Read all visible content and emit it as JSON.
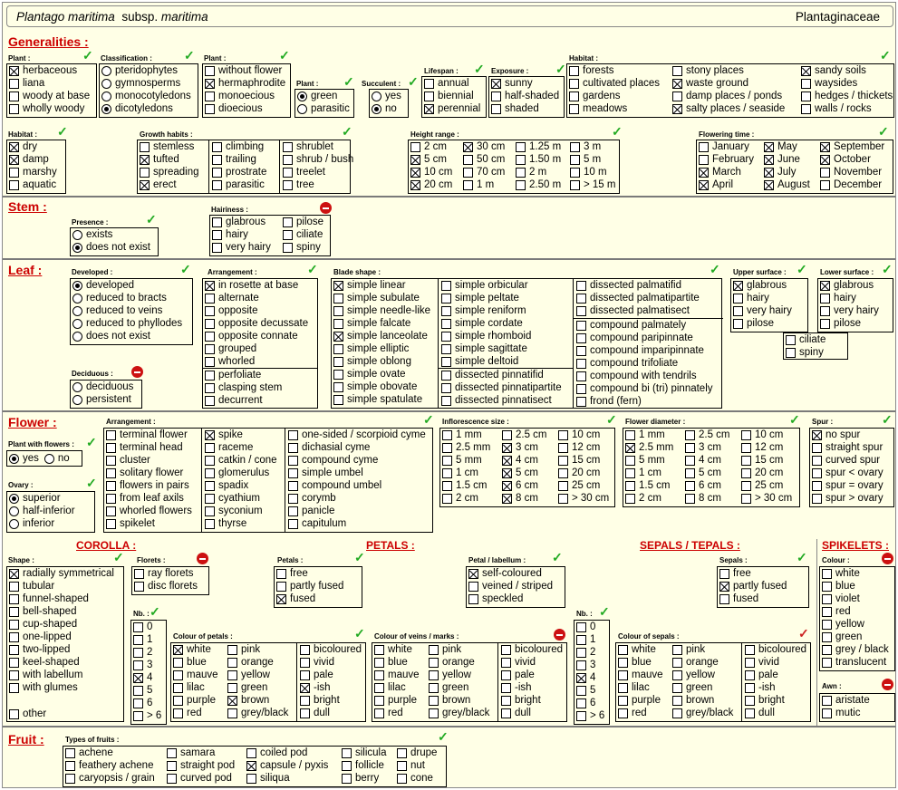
{
  "header": {
    "genus": "Plantago maritima",
    "subsp_label": "subsp.",
    "subsp": "maritima",
    "family": "Plantaginaceae"
  },
  "sections": {
    "generalities": "Generalities :",
    "stem": "Stem :",
    "leaf": "Leaf :",
    "flower": "Flower :",
    "fruit": "Fruit :"
  },
  "subsections": {
    "corolla": "COROLLA :",
    "petals": "PETALS :",
    "sepals": "SEPALS / TEPALS :",
    "spikelets": "SPIKELETS :"
  },
  "labels": {
    "plant1": "Plant :",
    "classification": "Classification :",
    "plant2": "Plant :",
    "plant3": "Plant :",
    "succulent": "Succulent :",
    "lifespan": "Lifespan :",
    "exposure": "Exposure :",
    "habitat1": "Habitat :",
    "habitat2": "Habitat :",
    "growth": "Growth habits :",
    "height": "Height range :",
    "flowering": "Flowering time :",
    "presence": "Presence :",
    "hairiness": "Hairiness :",
    "developed": "Developed :",
    "arrangement_leaf": "Arrangement :",
    "blade": "Blade shape :",
    "upper": "Upper surface :",
    "lower": "Lower surface :",
    "deciduous": "Deciduous :",
    "plant_flowers": "Plant with flowers :",
    "ovary": "Ovary :",
    "arrangement_fl": "Arrangement :",
    "infl_size": "Inflorescence size :",
    "fl_diam": "Flower diameter :",
    "spur": "Spur :",
    "shape": "Shape :",
    "florets": "Florets :",
    "petals": "Petals :",
    "petal_labellum": "Petal / labellum :",
    "sepals": "Sepals :",
    "colour": "Colour :",
    "nb1": "Nb. :",
    "nb2": "Nb. :",
    "colour_petals": "Colour of petals :",
    "colour_veins": "Colour of veins / marks :",
    "colour_sepals": "Colour of sepals :",
    "awn": "Awn :",
    "fruit_types": "Types of fruits :"
  },
  "check_glyph": "✓",
  "colors": {
    "section": "#cc0000",
    "check": "#22aa22",
    "prohibit": "#cc1111",
    "background": "#ffffe6"
  },
  "g_plant1": [
    {
      "t": "herbaceous",
      "c": 1
    },
    {
      "t": "liana",
      "c": 0
    },
    {
      "t": "woody at base",
      "c": 0
    },
    {
      "t": "wholly woody",
      "c": 0
    }
  ],
  "g_class": [
    {
      "t": "pteridophytes",
      "c": 0
    },
    {
      "t": "gymnosperms",
      "c": 0
    },
    {
      "t": "monocotyledons",
      "c": 0
    },
    {
      "t": "dicotyledons",
      "c": 1
    }
  ],
  "g_plant2": [
    {
      "t": "without flower",
      "c": 0
    },
    {
      "t": "hermaphrodite",
      "c": 1
    },
    {
      "t": "monoecious",
      "c": 0
    },
    {
      "t": "dioecious",
      "c": 0
    }
  ],
  "g_plant3": [
    {
      "t": "green",
      "c": 1
    },
    {
      "t": "parasitic",
      "c": 0
    }
  ],
  "g_succ": [
    {
      "t": "yes",
      "c": 0
    },
    {
      "t": "no",
      "c": 1
    }
  ],
  "g_life": [
    {
      "t": "annual",
      "c": 0
    },
    {
      "t": "biennial",
      "c": 0
    },
    {
      "t": "perennial",
      "c": 1
    }
  ],
  "g_expo": [
    {
      "t": "sunny",
      "c": 1
    },
    {
      "t": "half-shaded",
      "c": 0
    },
    {
      "t": "shaded",
      "c": 0
    }
  ],
  "g_hab1a": [
    {
      "t": "forests",
      "c": 0
    },
    {
      "t": "cultivated places",
      "c": 0
    },
    {
      "t": "gardens",
      "c": 0
    },
    {
      "t": "meadows",
      "c": 0
    }
  ],
  "g_hab1b": [
    {
      "t": "stony places",
      "c": 0
    },
    {
      "t": "waste ground",
      "c": 1
    },
    {
      "t": "damp places / ponds",
      "c": 0
    },
    {
      "t": "salty places / seaside",
      "c": 1
    }
  ],
  "g_hab1c": [
    {
      "t": "sandy soils",
      "c": 1
    },
    {
      "t": "waysides",
      "c": 0
    },
    {
      "t": "hedges / thickets",
      "c": 0
    },
    {
      "t": "walls / rocks",
      "c": 0
    }
  ],
  "g_hab2": [
    {
      "t": "dry",
      "c": 1
    },
    {
      "t": "damp",
      "c": 1
    },
    {
      "t": "marshy",
      "c": 0
    },
    {
      "t": "aquatic",
      "c": 0
    }
  ],
  "g_gr1": [
    {
      "t": "stemless",
      "c": 0
    },
    {
      "t": "tufted",
      "c": 1
    },
    {
      "t": "spreading",
      "c": 0
    },
    {
      "t": "erect",
      "c": 1
    }
  ],
  "g_gr2": [
    {
      "t": "climbing",
      "c": 0
    },
    {
      "t": "trailing",
      "c": 0
    },
    {
      "t": "prostrate",
      "c": 0
    },
    {
      "t": "parasitic",
      "c": 0
    }
  ],
  "g_gr3": [
    {
      "t": "shrublet",
      "c": 0
    },
    {
      "t": "shrub / bush",
      "c": 0
    },
    {
      "t": "treelet",
      "c": 0
    },
    {
      "t": "tree",
      "c": 0
    }
  ],
  "g_h1": [
    {
      "t": "2 cm",
      "c": 0
    },
    {
      "t": "5 cm",
      "c": 1
    },
    {
      "t": "10 cm",
      "c": 1
    },
    {
      "t": "20 cm",
      "c": 1
    }
  ],
  "g_h2": [
    {
      "t": "30 cm",
      "c": 1
    },
    {
      "t": "50 cm",
      "c": 0
    },
    {
      "t": "70 cm",
      "c": 0
    },
    {
      "t": "1 m",
      "c": 0
    }
  ],
  "g_h3": [
    {
      "t": "1.25 m",
      "c": 0
    },
    {
      "t": "1.50 m",
      "c": 0
    },
    {
      "t": "2 m",
      "c": 0
    },
    {
      "t": "2.50 m",
      "c": 0
    }
  ],
  "g_h4": [
    {
      "t": "3 m",
      "c": 0
    },
    {
      "t": "5 m",
      "c": 0
    },
    {
      "t": "10 m",
      "c": 0
    },
    {
      "t": "> 15 m",
      "c": 0
    }
  ],
  "g_f1": [
    {
      "t": "January",
      "c": 0
    },
    {
      "t": "February",
      "c": 0
    },
    {
      "t": "March",
      "c": 1
    },
    {
      "t": "April",
      "c": 1
    }
  ],
  "g_f2": [
    {
      "t": "May",
      "c": 1
    },
    {
      "t": "June",
      "c": 1
    },
    {
      "t": "July",
      "c": 1
    },
    {
      "t": "August",
      "c": 1
    }
  ],
  "g_f3": [
    {
      "t": "September",
      "c": 1
    },
    {
      "t": "October",
      "c": 1
    },
    {
      "t": "November",
      "c": 0
    },
    {
      "t": "December",
      "c": 0
    }
  ],
  "s_pres": [
    {
      "t": "exists",
      "c": 0
    },
    {
      "t": "does not exist",
      "c": 1
    }
  ],
  "s_hair1": [
    {
      "t": "glabrous",
      "c": 0
    },
    {
      "t": "hairy",
      "c": 0
    },
    {
      "t": "very hairy",
      "c": 0
    }
  ],
  "s_hair2": [
    {
      "t": "pilose",
      "c": 0
    },
    {
      "t": "ciliate",
      "c": 0
    },
    {
      "t": "spiny",
      "c": 0
    }
  ],
  "l_dev": [
    {
      "t": "developed",
      "c": 1
    },
    {
      "t": "reduced to bracts",
      "c": 0
    },
    {
      "t": "reduced to veins",
      "c": 0
    },
    {
      "t": "reduced to phyllodes",
      "c": 0
    },
    {
      "t": "does not exist",
      "c": 0
    }
  ],
  "l_dec": [
    {
      "t": "deciduous",
      "c": 0
    },
    {
      "t": "persistent",
      "c": 0
    }
  ],
  "l_arr1": [
    {
      "t": "in rosette at base",
      "c": 1
    },
    {
      "t": "alternate",
      "c": 0
    },
    {
      "t": "opposite",
      "c": 0
    },
    {
      "t": "opposite decussate",
      "c": 0
    },
    {
      "t": "opposite connate",
      "c": 0
    },
    {
      "t": "grouped",
      "c": 0
    },
    {
      "t": "whorled",
      "c": 0
    }
  ],
  "l_arr2": [
    {
      "t": "perfoliate",
      "c": 0
    },
    {
      "t": "clasping stem",
      "c": 0
    },
    {
      "t": "decurrent",
      "c": 0
    }
  ],
  "l_b1": [
    {
      "t": "simple linear",
      "c": 1
    },
    {
      "t": "simple subulate",
      "c": 0
    },
    {
      "t": "simple needle-like",
      "c": 0
    },
    {
      "t": "simple falcate",
      "c": 0
    },
    {
      "t": "simple lanceolate",
      "c": 1
    },
    {
      "t": "simple elliptic",
      "c": 0
    },
    {
      "t": "simple oblong",
      "c": 0
    },
    {
      "t": "simple ovate",
      "c": 0
    },
    {
      "t": "simple obovate",
      "c": 0
    },
    {
      "t": "simple spatulate",
      "c": 0
    }
  ],
  "l_b2a": [
    {
      "t": "simple orbicular",
      "c": 0
    },
    {
      "t": "simple peltate",
      "c": 0
    },
    {
      "t": "simple reniform",
      "c": 0
    },
    {
      "t": "simple cordate",
      "c": 0
    },
    {
      "t": "simple rhomboid",
      "c": 0
    },
    {
      "t": "simple sagittate",
      "c": 0
    },
    {
      "t": "simple deltoid",
      "c": 0
    }
  ],
  "l_b2b": [
    {
      "t": "dissected pinnatifid",
      "c": 0
    },
    {
      "t": "dissected pinnatipartite",
      "c": 0
    },
    {
      "t": "dissected pinnatisect",
      "c": 0
    }
  ],
  "l_b3a": [
    {
      "t": "dissected palmatifid",
      "c": 0
    },
    {
      "t": "dissected palmatipartite",
      "c": 0
    },
    {
      "t": "dissected palmatisect",
      "c": 0
    }
  ],
  "l_b3b": [
    {
      "t": "compound palmately",
      "c": 0
    },
    {
      "t": "compound paripinnate",
      "c": 0
    },
    {
      "t": "compound imparipinnate",
      "c": 0
    },
    {
      "t": "compound trifoliate",
      "c": 0
    },
    {
      "t": "compound with tendrils",
      "c": 0
    },
    {
      "t": "compound bi (tri) pinnately",
      "c": 0
    },
    {
      "t": "frond  (fern)",
      "c": 0
    }
  ],
  "l_up": [
    {
      "t": "glabrous",
      "c": 1
    },
    {
      "t": "hairy",
      "c": 0
    },
    {
      "t": "very hairy",
      "c": 0
    },
    {
      "t": "pilose",
      "c": 0
    }
  ],
  "l_low": [
    {
      "t": "glabrous",
      "c": 1
    },
    {
      "t": "hairy",
      "c": 0
    },
    {
      "t": "very hairy",
      "c": 0
    },
    {
      "t": "pilose",
      "c": 0
    }
  ],
  "l_cs": [
    {
      "t": "ciliate",
      "c": 0
    },
    {
      "t": "spiny",
      "c": 0
    }
  ],
  "f_pwf": [
    {
      "t": "yes",
      "c": 1
    },
    {
      "t": "no",
      "c": 0
    }
  ],
  "f_ov": [
    {
      "t": "superior",
      "c": 1
    },
    {
      "t": "half-inferior",
      "c": 0
    },
    {
      "t": "inferior",
      "c": 0
    }
  ],
  "f_a1": [
    {
      "t": "terminal flower",
      "c": 0
    },
    {
      "t": "terminal head",
      "c": 0
    },
    {
      "t": "cluster",
      "c": 0
    },
    {
      "t": "solitary flower",
      "c": 0
    },
    {
      "t": "flowers in pairs",
      "c": 0
    },
    {
      "t": "from leaf axils",
      "c": 0
    },
    {
      "t": "whorled flowers",
      "c": 0
    },
    {
      "t": "spikelet",
      "c": 0
    }
  ],
  "f_a2": [
    {
      "t": "spike",
      "c": 1
    },
    {
      "t": "raceme",
      "c": 0
    },
    {
      "t": "catkin / cone",
      "c": 0
    },
    {
      "t": "glomerulus",
      "c": 0
    },
    {
      "t": "spadix",
      "c": 0
    },
    {
      "t": "cyathium",
      "c": 0
    },
    {
      "t": "syconium",
      "c": 0
    },
    {
      "t": "thyrse",
      "c": 0
    }
  ],
  "f_a3": [
    {
      "t": "one-sided / scorpioid cyme",
      "c": 0
    },
    {
      "t": "dichasial cyme",
      "c": 0
    },
    {
      "t": "compound cyme",
      "c": 0
    },
    {
      "t": "simple umbel",
      "c": 0
    },
    {
      "t": "compound umbel",
      "c": 0
    },
    {
      "t": "corymb",
      "c": 0
    },
    {
      "t": "panicle",
      "c": 0
    },
    {
      "t": "capitulum",
      "c": 0
    }
  ],
  "f_i1": [
    {
      "t": "1 mm",
      "c": 0
    },
    {
      "t": "2.5 mm",
      "c": 0
    },
    {
      "t": "5 mm",
      "c": 0
    },
    {
      "t": "1 cm",
      "c": 0
    },
    {
      "t": "1.5 cm",
      "c": 0
    },
    {
      "t": "2 cm",
      "c": 0
    }
  ],
  "f_i2": [
    {
      "t": "2.5 cm",
      "c": 0
    },
    {
      "t": "3 cm",
      "c": 1
    },
    {
      "t": "4 cm",
      "c": 1
    },
    {
      "t": "5 cm",
      "c": 1
    },
    {
      "t": "6 cm",
      "c": 1
    },
    {
      "t": "8 cm",
      "c": 1
    }
  ],
  "f_i3": [
    {
      "t": "10 cm",
      "c": 0
    },
    {
      "t": "12 cm",
      "c": 0
    },
    {
      "t": "15 cm",
      "c": 0
    },
    {
      "t": "20 cm",
      "c": 0
    },
    {
      "t": "25 cm",
      "c": 0
    },
    {
      "t": "> 30 cm",
      "c": 0
    }
  ],
  "f_d1": [
    {
      "t": "1 mm",
      "c": 0
    },
    {
      "t": "2.5 mm",
      "c": 1
    },
    {
      "t": "5 mm",
      "c": 0
    },
    {
      "t": "1 cm",
      "c": 0
    },
    {
      "t": "1.5 cm",
      "c": 0
    },
    {
      "t": "2 cm",
      "c": 0
    }
  ],
  "f_d2": [
    {
      "t": "2.5 cm",
      "c": 0
    },
    {
      "t": "3 cm",
      "c": 0
    },
    {
      "t": "4 cm",
      "c": 0
    },
    {
      "t": "5 cm",
      "c": 0
    },
    {
      "t": "6 cm",
      "c": 0
    },
    {
      "t": "8 cm",
      "c": 0
    }
  ],
  "f_d3": [
    {
      "t": "10 cm",
      "c": 0
    },
    {
      "t": "12 cm",
      "c": 0
    },
    {
      "t": "15 cm",
      "c": 0
    },
    {
      "t": "20 cm",
      "c": 0
    },
    {
      "t": "25 cm",
      "c": 0
    },
    {
      "t": "> 30 cm",
      "c": 0
    }
  ],
  "f_spur": [
    {
      "t": "no spur",
      "c": 1
    },
    {
      "t": "straight spur",
      "c": 0
    },
    {
      "t": "curved spur",
      "c": 0
    },
    {
      "t": "spur < ovary",
      "c": 0
    },
    {
      "t": "spur = ovary",
      "c": 0
    },
    {
      "t": "spur > ovary",
      "c": 0
    }
  ],
  "c_shape": [
    {
      "t": "radially symmetrical",
      "c": 1
    },
    {
      "t": "tubular",
      "c": 0
    },
    {
      "t": "funnel-shaped",
      "c": 0
    },
    {
      "t": "bell-shaped",
      "c": 0
    },
    {
      "t": "cup-shaped",
      "c": 0
    },
    {
      "t": "one-lipped",
      "c": 0
    },
    {
      "t": "two-lipped",
      "c": 0
    },
    {
      "t": "keel-shaped",
      "c": 0
    },
    {
      "t": "with labellum",
      "c": 0
    },
    {
      "t": "with glumes",
      "c": 0
    }
  ],
  "c_other": [
    {
      "t": "other",
      "c": 0
    }
  ],
  "c_florets": [
    {
      "t": "ray florets",
      "c": 0
    },
    {
      "t": "disc florets",
      "c": 0
    }
  ],
  "c_nb": [
    {
      "t": "0",
      "c": 0
    },
    {
      "t": "1",
      "c": 0
    },
    {
      "t": "2",
      "c": 0
    },
    {
      "t": "3",
      "c": 0
    },
    {
      "t": "4",
      "c": 1
    },
    {
      "t": "5",
      "c": 0
    },
    {
      "t": "6",
      "c": 0
    },
    {
      "t": "> 6",
      "c": 0
    }
  ],
  "p_petals": [
    {
      "t": "free",
      "c": 0
    },
    {
      "t": "partly fused",
      "c": 0
    },
    {
      "t": "fused",
      "c": 1
    }
  ],
  "p_lab": [
    {
      "t": "self-coloured",
      "c": 1
    },
    {
      "t": "veined / striped",
      "c": 0
    },
    {
      "t": "speckled",
      "c": 0
    }
  ],
  "p_c1": [
    {
      "t": "white",
      "c": 1
    },
    {
      "t": "blue",
      "c": 0
    },
    {
      "t": "mauve",
      "c": 0
    },
    {
      "t": "lilac",
      "c": 0
    },
    {
      "t": "purple",
      "c": 0
    },
    {
      "t": "red",
      "c": 0
    }
  ],
  "p_c2": [
    {
      "t": "pink",
      "c": 0
    },
    {
      "t": "orange",
      "c": 0
    },
    {
      "t": "yellow",
      "c": 0
    },
    {
      "t": "green",
      "c": 0
    },
    {
      "t": "brown",
      "c": 1
    },
    {
      "t": "grey/black",
      "c": 0
    }
  ],
  "p_c3": [
    {
      "t": "bicoloured",
      "c": 0
    },
    {
      "t": "vivid",
      "c": 0
    },
    {
      "t": "pale",
      "c": 0
    },
    {
      "t": "-ish",
      "c": 1
    },
    {
      "t": "bright",
      "c": 0
    },
    {
      "t": "dull",
      "c": 0
    }
  ],
  "v_c1": [
    {
      "t": "white",
      "c": 0
    },
    {
      "t": "blue",
      "c": 0
    },
    {
      "t": "mauve",
      "c": 0
    },
    {
      "t": "lilac",
      "c": 0
    },
    {
      "t": "purple",
      "c": 0
    },
    {
      "t": "red",
      "c": 0
    }
  ],
  "v_c2": [
    {
      "t": "pink",
      "c": 0
    },
    {
      "t": "orange",
      "c": 0
    },
    {
      "t": "yellow",
      "c": 0
    },
    {
      "t": "green",
      "c": 0
    },
    {
      "t": "brown",
      "c": 0
    },
    {
      "t": "grey/black",
      "c": 0
    }
  ],
  "v_c3": [
    {
      "t": "bicoloured",
      "c": 0
    },
    {
      "t": "vivid",
      "c": 0
    },
    {
      "t": "pale",
      "c": 0
    },
    {
      "t": "-ish",
      "c": 0
    },
    {
      "t": "bright",
      "c": 0
    },
    {
      "t": "dull",
      "c": 0
    }
  ],
  "e_nb": [
    {
      "t": "0",
      "c": 0
    },
    {
      "t": "1",
      "c": 0
    },
    {
      "t": "2",
      "c": 0
    },
    {
      "t": "3",
      "c": 0
    },
    {
      "t": "4",
      "c": 1
    },
    {
      "t": "5",
      "c": 0
    },
    {
      "t": "6",
      "c": 0
    },
    {
      "t": "> 6",
      "c": 0
    }
  ],
  "e_sepals": [
    {
      "t": "free",
      "c": 0
    },
    {
      "t": "partly fused",
      "c": 1
    },
    {
      "t": "fused",
      "c": 0
    }
  ],
  "e_c1": [
    {
      "t": "white",
      "c": 0
    },
    {
      "t": "blue",
      "c": 0
    },
    {
      "t": "mauve",
      "c": 0
    },
    {
      "t": "lilac",
      "c": 0
    },
    {
      "t": "purple",
      "c": 0
    },
    {
      "t": "red",
      "c": 0
    }
  ],
  "e_c2": [
    {
      "t": "pink",
      "c": 0
    },
    {
      "t": "orange",
      "c": 0
    },
    {
      "t": "yellow",
      "c": 0
    },
    {
      "t": "green",
      "c": 0
    },
    {
      "t": "brown",
      "c": 0
    },
    {
      "t": "grey/black",
      "c": 0
    }
  ],
  "e_c3": [
    {
      "t": "bicoloured",
      "c": 0
    },
    {
      "t": "vivid",
      "c": 0
    },
    {
      "t": "pale",
      "c": 0
    },
    {
      "t": "-ish",
      "c": 0
    },
    {
      "t": "bright",
      "c": 0
    },
    {
      "t": "dull",
      "c": 0
    }
  ],
  "k_col": [
    {
      "t": "white",
      "c": 0
    },
    {
      "t": "blue",
      "c": 0
    },
    {
      "t": "violet",
      "c": 0
    },
    {
      "t": "red",
      "c": 0
    },
    {
      "t": "yellow",
      "c": 0
    },
    {
      "t": "green",
      "c": 0
    },
    {
      "t": "grey / black",
      "c": 0
    },
    {
      "t": "translucent",
      "c": 0
    }
  ],
  "k_awn": [
    {
      "t": "aristate",
      "c": 0
    },
    {
      "t": "mutic",
      "c": 0
    }
  ],
  "fr1": [
    {
      "t": "achene",
      "c": 0
    },
    {
      "t": "feathery achene",
      "c": 0
    },
    {
      "t": "caryopsis / grain",
      "c": 0
    }
  ],
  "fr2": [
    {
      "t": "samara",
      "c": 0
    },
    {
      "t": "straight pod",
      "c": 0
    },
    {
      "t": "curved pod",
      "c": 0
    }
  ],
  "fr3": [
    {
      "t": "coiled pod",
      "c": 0
    },
    {
      "t": "capsule / pyxis",
      "c": 1
    },
    {
      "t": "siliqua",
      "c": 0
    }
  ],
  "fr4": [
    {
      "t": "silicula",
      "c": 0
    },
    {
      "t": "follicle",
      "c": 0
    },
    {
      "t": "berry",
      "c": 0
    }
  ],
  "fr5": [
    {
      "t": "drupe",
      "c": 0
    },
    {
      "t": "nut",
      "c": 0
    },
    {
      "t": "cone",
      "c": 0
    }
  ]
}
